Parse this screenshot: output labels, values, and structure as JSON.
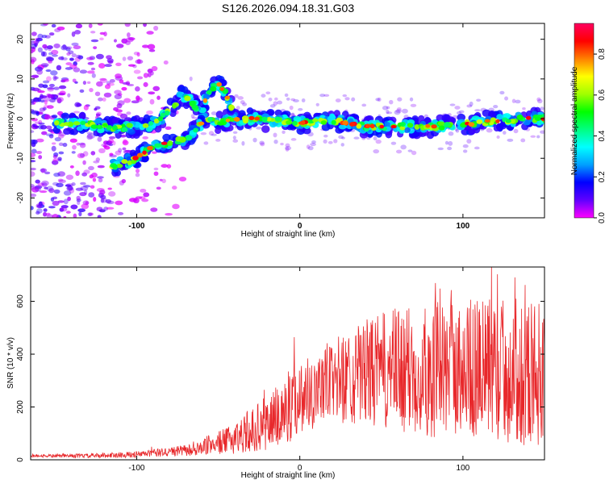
{
  "title": "S126.2026.094.18.31.G03",
  "colors": {
    "snr_line": "#e8282b",
    "colorbar_stops": [
      "#ff00ff",
      "#6000ff",
      "#0000ff",
      "#00a0ff",
      "#00ffff",
      "#00ff80",
      "#00ff00",
      "#a0ff00",
      "#ffff00",
      "#ff8000",
      "#ff0000",
      "#ff0060"
    ]
  },
  "chart_data": [
    {
      "type": "heatmap",
      "xlabel": "Height of straight line (km)",
      "ylabel": "Frequency (Hz)",
      "xlim": [
        -165,
        150
      ],
      "ylim": [
        -25,
        24
      ],
      "xticks": [
        -100,
        0,
        100
      ],
      "xtick_labels": [
        "-100",
        "0",
        "100"
      ],
      "yticks": [
        -20,
        -10,
        0,
        10,
        20
      ],
      "ytick_labels": [
        "-20",
        "-10",
        "0",
        "10",
        "20"
      ],
      "colorbar": {
        "label": "Normalized spectral amplitude",
        "range": [
          0,
          0.95
        ],
        "ticks": [
          0.0,
          0.2,
          0.4,
          0.6,
          0.8
        ],
        "tick_labels": [
          "0.0",
          "0.2",
          "0.4",
          "0.6",
          "0.8"
        ]
      },
      "ridges": [
        {
          "name": "main-frequency-ridge",
          "points": [
            [
              -150,
              -1
            ],
            [
              -130,
              -1.5
            ],
            [
              -110,
              -2.5
            ],
            [
              -95,
              -2
            ],
            [
              -85,
              0
            ],
            [
              -78,
              3
            ],
            [
              -72,
              6
            ],
            [
              -66,
              4
            ],
            [
              -60,
              1
            ],
            [
              -50,
              -1
            ],
            [
              -40,
              0
            ],
            [
              -30,
              0
            ],
            [
              -20,
              -0.5
            ],
            [
              0,
              -1
            ],
            [
              20,
              -0.5
            ],
            [
              40,
              -2
            ],
            [
              60,
              -2
            ],
            [
              80,
              -2
            ],
            [
              100,
              -1.5
            ],
            [
              120,
              -0.5
            ],
            [
              140,
              0
            ],
            [
              150,
              0
            ]
          ]
        },
        {
          "name": "descending-branch",
          "points": [
            [
              -115,
              -12
            ],
            [
              -100,
              -10
            ],
            [
              -90,
              -7
            ],
            [
              -80,
              -6
            ],
            [
              -70,
              -5
            ],
            [
              -60,
              -1
            ]
          ]
        },
        {
          "name": "rising-branch",
          "points": [
            [
              -60,
              3
            ],
            [
              -55,
              7
            ],
            [
              -50,
              9
            ],
            [
              -45,
              6
            ],
            [
              -40,
              1
            ]
          ]
        }
      ]
    },
    {
      "type": "line",
      "xlabel": "Height of straight line (km)",
      "ylabel": "SNR (10 * v/v)",
      "xlim": [
        -165,
        150
      ],
      "ylim": [
        0,
        730
      ],
      "xticks": [
        -100,
        0,
        100
      ],
      "xtick_labels": [
        "-100",
        "0",
        "100"
      ],
      "yticks": [
        0,
        200,
        400,
        600
      ],
      "ytick_labels": [
        "0",
        "200",
        "400",
        "600"
      ],
      "envelope": {
        "x": [
          -165,
          -130,
          -100,
          -80,
          -60,
          -55,
          -45,
          -30,
          -20,
          -10,
          0,
          20,
          40,
          60,
          80,
          100,
          120,
          150
        ],
        "base": [
          15,
          15,
          20,
          30,
          40,
          60,
          70,
          110,
          140,
          180,
          240,
          300,
          330,
          340,
          340,
          350,
          340,
          330
        ],
        "spread": [
          5,
          8,
          12,
          18,
          25,
          40,
          50,
          80,
          110,
          140,
          140,
          160,
          200,
          240,
          260,
          260,
          280,
          280
        ]
      }
    }
  ]
}
